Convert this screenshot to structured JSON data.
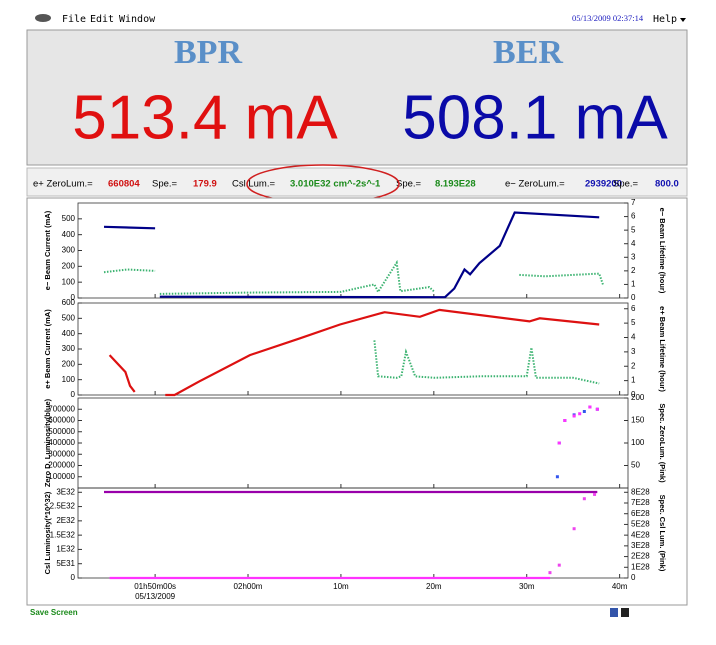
{
  "menu": {
    "items": [
      "File",
      "Edit",
      "Window"
    ],
    "timestamp": "05/13/2009 02:37:14",
    "help": "Help"
  },
  "header": {
    "left_title": "BPR",
    "right_title": "BER",
    "left_value": "513.4 mA",
    "right_value": "508.1 mA"
  },
  "status": [
    {
      "label": "e+ ZeroLum.=",
      "value": "660804",
      "color": "#d01010"
    },
    {
      "label": "Spe.=",
      "value": "179.9",
      "color": "#d01010"
    },
    {
      "label": "Csl.Lum.=",
      "value": "3.010E32 cm^-2s^-1",
      "color": "#1a8a1a"
    },
    {
      "label": "Spe.=",
      "value": "8.193E28",
      "color": "#1a8a1a"
    },
    {
      "label": "e− ZeroLum.=",
      "value": "2939200",
      "color": "#1010b0"
    },
    {
      "label": "Spe.=",
      "value": "800.0",
      "color": "#1010b0"
    }
  ],
  "plots": {
    "xlim": [
      101.7,
      160.9
    ],
    "xticks": [
      {
        "value": 110,
        "label": "01h50m00s"
      },
      {
        "value": 120,
        "label": "02h00m"
      },
      {
        "value": 130,
        "label": "10m"
      },
      {
        "value": 140,
        "label": "20m"
      },
      {
        "value": 150,
        "label": "30m"
      },
      {
        "value": 160,
        "label": "40m"
      }
    ],
    "x_date": "05/13/2009",
    "panels": [
      {
        "ylabel": "e− Beam Current (mA)",
        "y2label": "e− Beam Lifetime (hour)",
        "ylim": [
          0,
          600
        ],
        "yticks": [
          0,
          100,
          200,
          300,
          400,
          500
        ],
        "y2lim": [
          0,
          7
        ],
        "y2ticks": [
          0,
          1,
          2,
          3,
          4,
          5,
          6,
          7
        ],
        "series": [
          {
            "color": "#000088",
            "style": "line",
            "x": [
              104.5,
              110.0,
              110.2,
              110.5,
              141.2,
              142.2,
              143.3,
              143.9,
              144.9,
              147.1,
              148.7,
              157.8
            ],
            "values": [
              450,
              440,
              null,
              8,
              5,
              60,
              180,
              150,
              220,
              330,
              540,
              510
            ]
          },
          {
            "color": "#3cb371",
            "style": "dotted",
            "axis": "y2",
            "x": [
              104.5,
              107,
              110.0,
              110.3,
              110.5,
              120,
              130,
              133.6,
              134,
              136.0,
              136.4,
              139.5,
              140,
              141.2,
              149.2,
              152,
              155,
              157.8,
              158.2
            ],
            "values": [
              1.9,
              2.1,
              2.0,
              null,
              0.3,
              0.4,
              0.45,
              1.0,
              0.45,
              2.6,
              0.5,
              0.8,
              0.5,
              null,
              1.7,
              1.6,
              1.7,
              1.8,
              1.0
            ]
          }
        ]
      },
      {
        "ylabel": "e+ Beam Current (mA)",
        "y2label": "e+ Beam Lifetime (hour)",
        "ylim": [
          0,
          600
        ],
        "yticks": [
          0,
          100,
          200,
          300,
          400,
          500,
          600
        ],
        "y2lim": [
          0,
          6.4
        ],
        "y2ticks": [
          0,
          1,
          2,
          3,
          4,
          5,
          6
        ],
        "series": [
          {
            "color": "#dd1111",
            "style": "line",
            "x": [
              105.1,
              106.8,
              107.3,
              107.8,
              108,
              111.1,
              112.1,
              114.8,
              120.2,
              125.6,
              129.9,
              134.7,
              138.5,
              140.6,
              150.3,
              151.4,
              157.8
            ],
            "values": [
              260,
              150,
              60,
              20,
              null,
              0,
              0,
              90,
              260,
              370,
              460,
              540,
              510,
              555,
              480,
              500,
              460
            ]
          },
          {
            "color": "#3cb371",
            "style": "dotted",
            "axis": "y2",
            "x": [
              133.6,
              134,
              136,
              136.5,
              137,
              138,
              140,
              145,
              150,
              150.5,
              151,
              155,
              157.8
            ],
            "values": [
              3.8,
              1.3,
              1.2,
              1.3,
              3.0,
              1.3,
              1.2,
              1.3,
              1.3,
              3.3,
              1.2,
              1.2,
              0.8
            ]
          }
        ]
      },
      {
        "ylabel": "Zero D. Luminosity(blue)",
        "y2label": "Spec. ZeroLum. (Pink)",
        "ylim": [
          0,
          800000
        ],
        "yticks": [
          100000,
          200000,
          300000,
          400000,
          500000,
          600000,
          700000
        ],
        "y2lim": [
          0,
          200
        ],
        "y2ticks": [
          50,
          100,
          150,
          200
        ],
        "series": [
          {
            "color": "#3355ee",
            "style": "dots",
            "x": [
              153.3,
              153.5,
              154.1,
              155.1,
              156.2,
              156.8,
              157.6
            ],
            "values": [
              100000,
              400000,
              600000,
              650000,
              680000,
              720000,
              700000
            ]
          },
          {
            "color": "#ff33ff",
            "style": "dots",
            "axis": "y2",
            "x": [
              153.5,
              154.1,
              155.1,
              155.7,
              156.8,
              157.6
            ],
            "values": [
              100,
              150,
              160,
              165,
              180,
              175
            ]
          }
        ]
      },
      {
        "ylabel": "Csl Luminosity(*10^32)",
        "y2label": "Spec. Csl Lum. (Pink)",
        "ylim": [
          0,
          3.15e+32
        ],
        "yticks": [
          0,
          {
            "value": 5e+31,
            "label": "5E31"
          },
          {
            "value": 1e+32,
            "label": "1E32"
          },
          {
            "value": 1.5e+32,
            "label": "1.5E32"
          },
          {
            "value": 2e+32,
            "label": "2E32"
          },
          {
            "value": 2.5e+32,
            "label": "2.5E32"
          },
          {
            "value": 3e+32,
            "label": "3E32"
          }
        ],
        "y2lim": [
          0,
          8.4e+28
        ],
        "y2ticks": [
          0,
          {
            "value": 1e+28,
            "label": "1E28"
          },
          {
            "value": 2e+28,
            "label": "2E28"
          },
          {
            "value": 3e+28,
            "label": "3E28"
          },
          {
            "value": 4e+28,
            "label": "4E28"
          },
          {
            "value": 5e+28,
            "label": "5E28"
          },
          {
            "value": 6e+28,
            "label": "6E28"
          },
          {
            "value": 7e+28,
            "label": "7E28"
          },
          {
            "value": 8e+28,
            "label": "8E28"
          }
        ],
        "series": [
          {
            "color": "#9900aa",
            "style": "line",
            "x": [
              104.5,
              157.6
            ],
            "values": [
              3.01e+32,
              3.01e+32
            ]
          },
          {
            "color": "#ff33ff",
            "style": "line",
            "axis": "y2",
            "x": [
              105.1,
              152.5
            ],
            "values": [
              0,
              0
            ]
          },
          {
            "color": "#ee44ee",
            "style": "dots",
            "axis": "y2",
            "x": [
              152.5,
              153.5,
              155.1,
              156.2,
              157.3
            ],
            "values": [
              5e+27,
              1.2e+28,
              4.6e+28,
              7.4e+28,
              7.8e+28
            ]
          }
        ]
      }
    ]
  },
  "footer": {
    "save": "Save Screen"
  }
}
